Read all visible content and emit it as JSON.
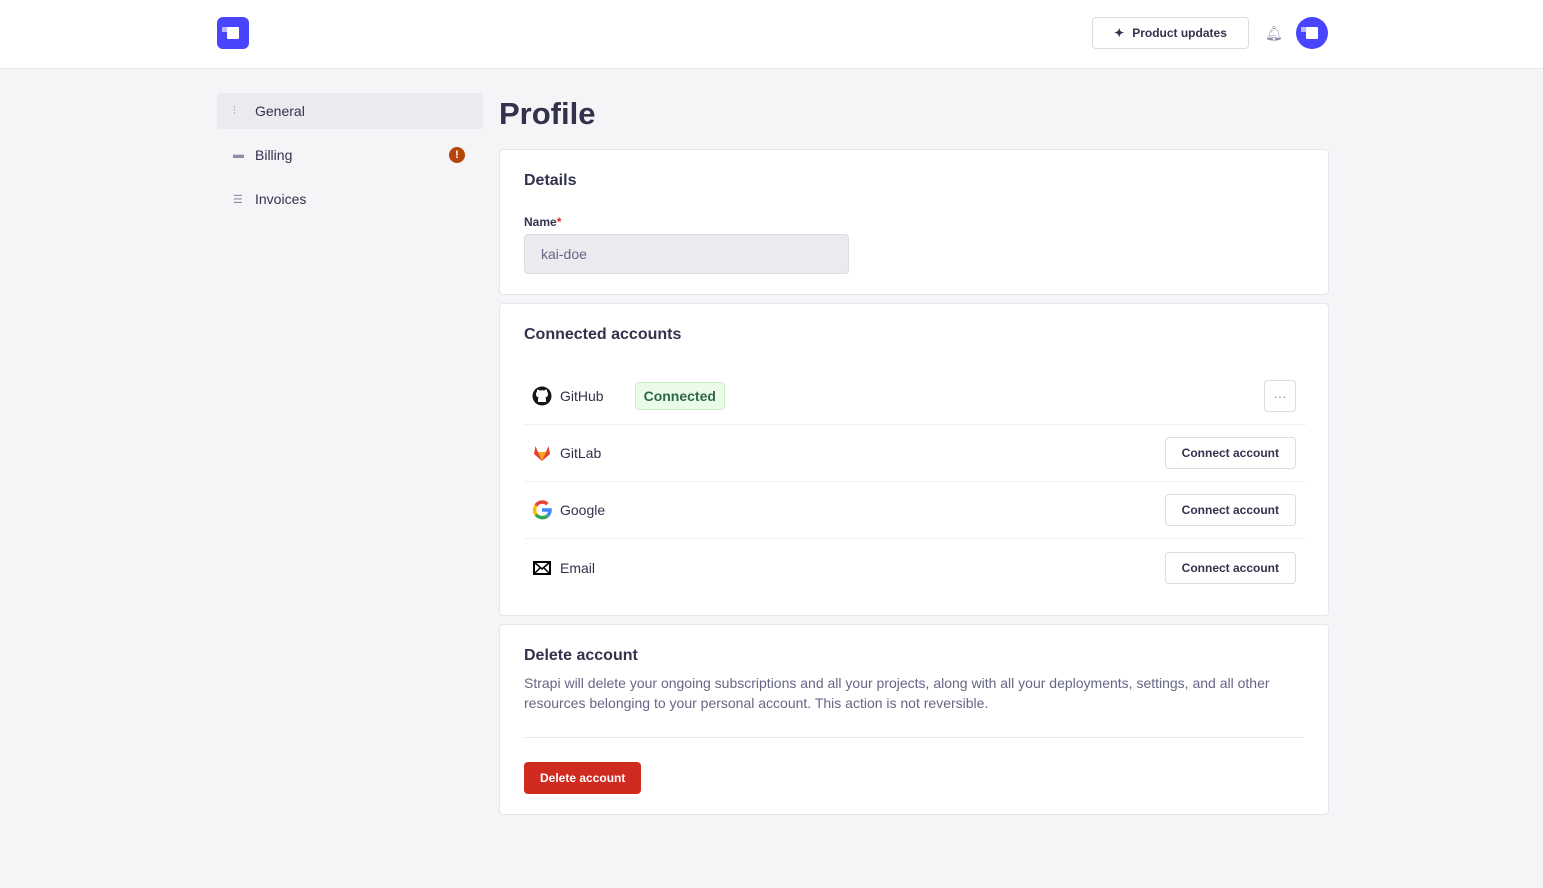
{
  "header": {
    "product_updates": "Product updates"
  },
  "sidebar": {
    "items": [
      {
        "label": "General",
        "active": true
      },
      {
        "label": "Billing",
        "badge": "!"
      },
      {
        "label": "Invoices"
      }
    ]
  },
  "page": {
    "title": "Profile"
  },
  "details": {
    "title": "Details",
    "name_label": "Name",
    "required_mark": "*",
    "name_value": "kai-doe"
  },
  "connected": {
    "title": "Connected accounts",
    "accounts": [
      {
        "name": "GitHub",
        "status": "Connected",
        "more": "···"
      },
      {
        "name": "GitLab",
        "action": "Connect account"
      },
      {
        "name": "Google",
        "action": "Connect account"
      },
      {
        "name": "Email",
        "action": "Connect account"
      }
    ]
  },
  "delete": {
    "title": "Delete account",
    "description": "Strapi will delete your ongoing subscriptions and all your projects, along with all your deployments, settings, and all other resources belonging to your personal account. This action is not reversible.",
    "button": "Delete account"
  },
  "colors": {
    "brand": "#4945ff",
    "danger": "#d02b20",
    "success_bg": "#eafbe7",
    "warning": "#b5460b"
  }
}
